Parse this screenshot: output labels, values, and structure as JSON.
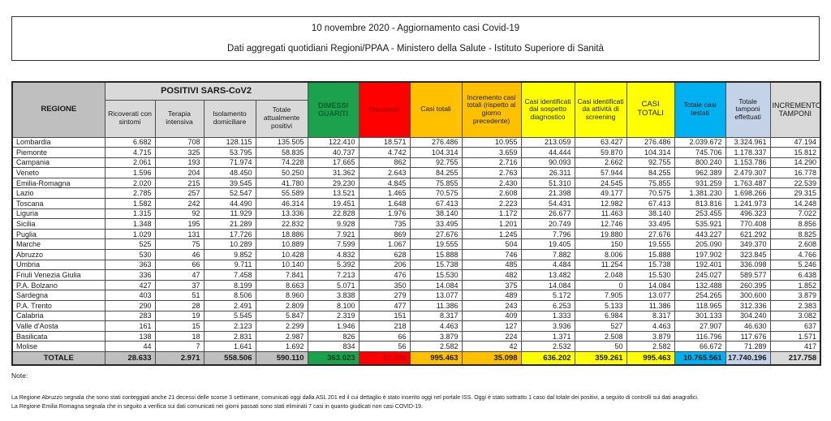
{
  "page": {
    "title_line1": "10 novembre 2020 - Aggiornamento casi Covid-19",
    "title_line2": "Dati aggregati quotidiani Regioni/PPAA - Ministero della Salute - Istituto Superiore di Sanità"
  },
  "colors": {
    "green": "#1ca24c",
    "red": "#fe0000",
    "orange": "#ffc000",
    "yellow": "#ffff00",
    "cyan": "#00b0f0",
    "periwinkle": "#c3d2e7",
    "gray_dark": "#bfbfbf",
    "gray_light": "#d9d9d9"
  },
  "table": {
    "group_header": "POSITIVI SARS-CoV2",
    "columns": [
      "REGIONE",
      "Ricoverati con sintomi",
      "Terapia intensiva",
      "Isolamento domiciliare",
      "Totale attualmente positivi",
      "DIMESSI GUARITI",
      "Deceduti",
      "Casi totali",
      "Incremento casi totali (rispetto al giorno precedente)",
      "Casi identificati dal sospetto diagnostico",
      "Casi identificati da attività di screening",
      "CASI TOTALI",
      "Totale casi testati",
      "Totale tamponi effettuati",
      "INCREMENTO TAMPONI"
    ],
    "rows": [
      {
        "regione": "Lombardia",
        "values": [
          "6.682",
          "708",
          "128.115",
          "135.505",
          "122.410",
          "18.571",
          "276.486",
          "10.955",
          "213.059",
          "63.427",
          "276.486",
          "2.039.672",
          "3.324.961",
          "47.194"
        ]
      },
      {
        "regione": "Piemonte",
        "values": [
          "4.715",
          "325",
          "53.795",
          "58.835",
          "40.737",
          "4.742",
          "104.314",
          "3.659",
          "44.444",
          "59.870",
          "104.314",
          "745.706",
          "1.178.337",
          "15.812"
        ]
      },
      {
        "regione": "Campania",
        "values": [
          "2.061",
          "193",
          "71.974",
          "74.228",
          "17.665",
          "862",
          "92.755",
          "2.716",
          "90.093",
          "2.662",
          "92.755",
          "800.240",
          "1.153.786",
          "14.290"
        ]
      },
      {
        "regione": "Veneto",
        "values": [
          "1.596",
          "204",
          "48.450",
          "50.250",
          "31.362",
          "2.643",
          "84.255",
          "2.763",
          "26.311",
          "57.944",
          "84.255",
          "962.389",
          "2.479.307",
          "16.778"
        ]
      },
      {
        "regione": "Emilia-Romagna",
        "values": [
          "2.020",
          "215",
          "39.545",
          "41.780",
          "29.230",
          "4.845",
          "75.855",
          "2.430",
          "51.310",
          "24.545",
          "75.855",
          "931.259",
          "1.763.487",
          "22.539"
        ]
      },
      {
        "regione": "Lazio",
        "values": [
          "2.785",
          "257",
          "52.547",
          "55.589",
          "13.521",
          "1.465",
          "70.575",
          "2.608",
          "21.398",
          "49.177",
          "70.575",
          "1.381.230",
          "1.698.266",
          "29.315"
        ]
      },
      {
        "regione": "Toscana",
        "values": [
          "1.582",
          "242",
          "44.490",
          "46.314",
          "19.451",
          "1.648",
          "67.413",
          "2.223",
          "54.431",
          "12.982",
          "67.413",
          "813.816",
          "1.241.973",
          "14.248"
        ]
      },
      {
        "regione": "Liguria",
        "values": [
          "1.315",
          "92",
          "11.929",
          "13.336",
          "22.828",
          "1.976",
          "38.140",
          "1.172",
          "26.677",
          "11.463",
          "38.140",
          "253.455",
          "496.323",
          "7.022"
        ]
      },
      {
        "regione": "Sicilia",
        "values": [
          "1.348",
          "195",
          "21.289",
          "22.832",
          "9.928",
          "735",
          "33.495",
          "1.201",
          "20.749",
          "12.746",
          "33.495",
          "535.921",
          "770.408",
          "8.856"
        ]
      },
      {
        "regione": "Puglia",
        "values": [
          "1.029",
          "131",
          "17.726",
          "18.886",
          "7.921",
          "869",
          "27.676",
          "1.245",
          "7.796",
          "19.880",
          "27.676",
          "443.227",
          "621.292",
          "8.825"
        ]
      },
      {
        "regione": "Marche",
        "values": [
          "525",
          "75",
          "10.289",
          "10.889",
          "7.599",
          "1.067",
          "19.555",
          "504",
          "19.405",
          "150",
          "19.555",
          "205.090",
          "349.370",
          "2.608"
        ]
      },
      {
        "regione": "Abruzzo",
        "values": [
          "530",
          "46",
          "9.852",
          "10.428",
          "4.832",
          "628",
          "15.888",
          "746",
          "7.882",
          "8.006",
          "15.888",
          "197.902",
          "323.845",
          "4.766"
        ]
      },
      {
        "regione": "Umbria",
        "values": [
          "363",
          "66",
          "9.711",
          "10.140",
          "5.392",
          "206",
          "15.738",
          "485",
          "4.484",
          "11.254",
          "15.738",
          "192.401",
          "336.098",
          "5.246"
        ]
      },
      {
        "regione": "Friuli Venezia Giulia",
        "values": [
          "336",
          "47",
          "7.458",
          "7.841",
          "7.213",
          "476",
          "15.530",
          "482",
          "13.482",
          "2.048",
          "15.530",
          "245.027",
          "589.577",
          "6.438"
        ]
      },
      {
        "regione": "P.A. Bolzano",
        "values": [
          "427",
          "37",
          "8.199",
          "8.663",
          "5.071",
          "350",
          "14.084",
          "375",
          "14.084",
          "0",
          "14.084",
          "132.488",
          "260.395",
          "1.852"
        ]
      },
      {
        "regione": "Sardegna",
        "values": [
          "403",
          "51",
          "8.506",
          "8.960",
          "3.838",
          "279",
          "13.077",
          "489",
          "5.172",
          "7.905",
          "13.077",
          "254.265",
          "300.600",
          "3.879"
        ]
      },
      {
        "regione": "P.A. Trento",
        "values": [
          "290",
          "28",
          "2.491",
          "2.809",
          "8.100",
          "477",
          "11.386",
          "243",
          "6.253",
          "5.133",
          "11.386",
          "118.965",
          "312.336",
          "2.383"
        ]
      },
      {
        "regione": "Calabria",
        "values": [
          "283",
          "19",
          "5.545",
          "5.847",
          "2.319",
          "151",
          "8.317",
          "409",
          "1.333",
          "6.984",
          "8.317",
          "301.133",
          "304.240",
          "3.082"
        ]
      },
      {
        "regione": "Valle d'Aosta",
        "values": [
          "161",
          "15",
          "2.123",
          "2.299",
          "1.946",
          "218",
          "4.463",
          "127",
          "3.936",
          "527",
          "4.463",
          "27.907",
          "46.630",
          "637"
        ]
      },
      {
        "regione": "Basilicata",
        "values": [
          "138",
          "18",
          "2.831",
          "2.987",
          "826",
          "66",
          "3.879",
          "224",
          "1.371",
          "2.508",
          "3.879",
          "116.796",
          "117.676",
          "1.571"
        ]
      },
      {
        "regione": "Molise",
        "values": [
          "44",
          "7",
          "1.641",
          "1.692",
          "834",
          "56",
          "2.582",
          "42",
          "2.532",
          "50",
          "2.582",
          "66.672",
          "71.289",
          "417"
        ]
      }
    ],
    "totale": {
      "label": "TOTALE",
      "values": [
        "28.633",
        "2.971",
        "558.506",
        "590.110",
        "363.023",
        "42.330",
        "995.463",
        "35.098",
        "636.202",
        "359.261",
        "995.463",
        "10.765.561",
        "17.740.196",
        "217.758"
      ]
    }
  },
  "notes": {
    "label": "Note:",
    "lines": [
      "La Regione Abruzzo segnala che sono stati conteggiati anche 21 decessi delle scorse 3 settimane, comunicati oggi dalla ASL 201 ed il cui dettaglio è stato inserito oggi nel portale ISS. Oggi è stato sottratto 1 caso dal totale dei positivi, a seguito di controlli sui dati anagrafici.",
      "La Regione Emilia Romagna segnala che in seguito a verifica sui dati comunicati nei giorni passati sono stati eliminati 7 casi in quanto giudicati non casi COVID-19."
    ]
  }
}
